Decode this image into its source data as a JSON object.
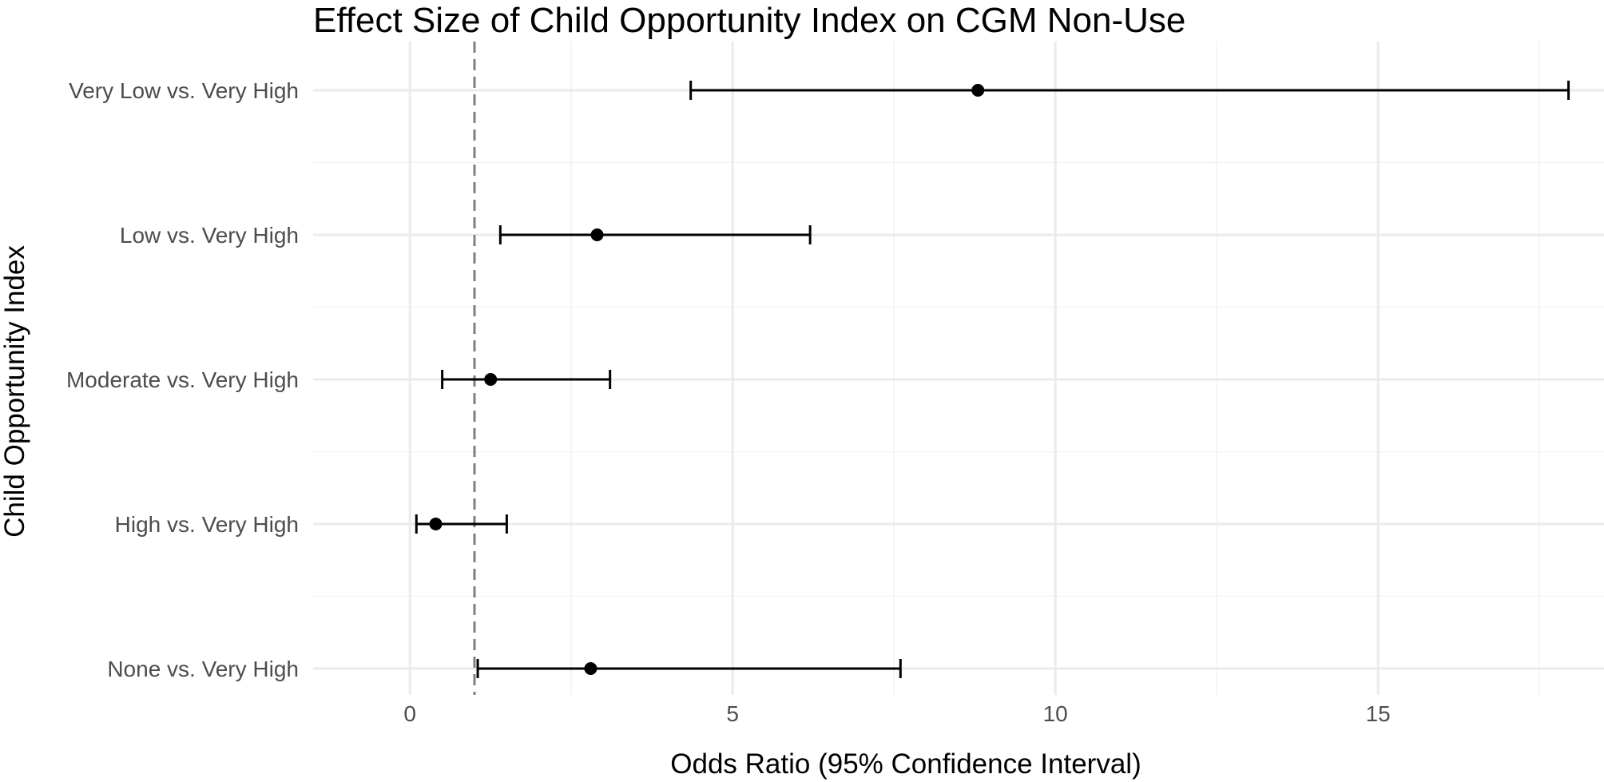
{
  "chart_data": {
    "type": "forest",
    "title": "Effect Size of Child Opportunity Index on CGM Non-Use",
    "xlabel": "Odds Ratio (95% Confidence Interval)",
    "ylabel": "Child Opportunity Index",
    "xlim": [
      -1.5,
      18.5
    ],
    "x_ticks": [
      0,
      5,
      10,
      15
    ],
    "x_tick_labels": [
      "0",
      "5",
      "10",
      "15"
    ],
    "reference_line": 1,
    "categories": [
      "Very Low vs. Very High",
      "Low vs. Very High",
      "Moderate vs. Very High",
      "High vs. Very High",
      "None vs. Very High"
    ],
    "estimates": [
      8.8,
      2.9,
      1.25,
      0.4,
      2.8
    ],
    "ci_lower": [
      4.35,
      1.4,
      0.5,
      0.1,
      1.05
    ],
    "ci_upper": [
      17.95,
      6.2,
      3.1,
      1.5,
      7.6
    ],
    "grid": true,
    "legend": "none"
  }
}
